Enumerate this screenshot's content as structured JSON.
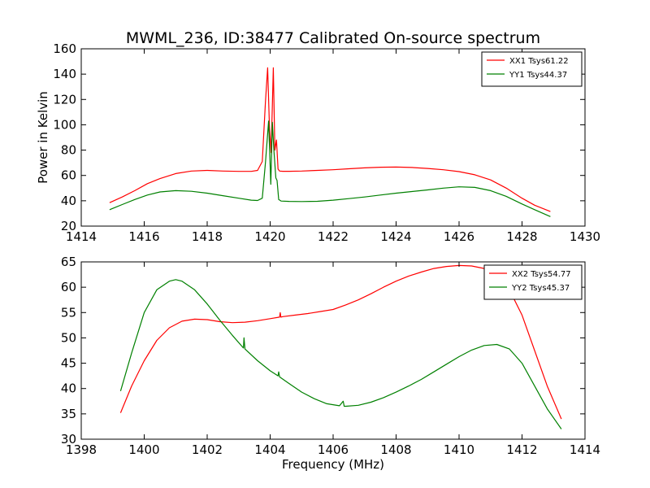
{
  "chart_data": [
    {
      "type": "line",
      "title": "MWML_236, ID:38477 Calibrated On-source spectrum",
      "xlabel": "",
      "ylabel": "Power in Kelvin",
      "xlim": [
        1414,
        1430
      ],
      "ylim": [
        20,
        160
      ],
      "xticks": [
        "1414",
        "1416",
        "1418",
        "1420",
        "1422",
        "1424",
        "1426",
        "1428",
        "1430"
      ],
      "yticks": [
        "20",
        "40",
        "60",
        "80",
        "100",
        "120",
        "140",
        "160"
      ],
      "legend_position": "top-right",
      "grid": false,
      "series": [
        {
          "name": "XX1 Tsys61.22",
          "color": "#ff0000",
          "x": [
            1414.9,
            1415.3,
            1415.7,
            1416.1,
            1416.5,
            1417.0,
            1417.5,
            1418.0,
            1418.5,
            1419.0,
            1419.4,
            1419.6,
            1419.75,
            1419.85,
            1419.92,
            1419.98,
            1420.03,
            1420.1,
            1420.15,
            1420.2,
            1420.25,
            1420.3,
            1420.4,
            1420.6,
            1421.0,
            1421.5,
            1422.0,
            1422.5,
            1423.0,
            1423.5,
            1424.0,
            1424.5,
            1425.0,
            1425.5,
            1426.0,
            1426.5,
            1427.0,
            1427.5,
            1428.0,
            1428.4,
            1428.9
          ],
          "y": [
            38.5,
            43,
            48,
            53.5,
            57.5,
            61.5,
            63.5,
            64,
            63.5,
            63.2,
            63.2,
            64,
            71,
            118,
            145,
            97,
            78,
            145,
            80,
            88,
            65,
            63.5,
            63.3,
            63.3,
            63.5,
            64,
            64.5,
            65.3,
            66,
            66.5,
            66.6,
            66.3,
            65.5,
            64.5,
            63,
            60.5,
            56.5,
            50,
            42,
            36.5,
            31.5
          ]
        },
        {
          "name": "YY1 Tsys44.37",
          "color": "#008000",
          "x": [
            1414.9,
            1415.3,
            1415.7,
            1416.1,
            1416.5,
            1417.0,
            1417.5,
            1418.0,
            1418.5,
            1419.0,
            1419.4,
            1419.6,
            1419.75,
            1419.85,
            1419.95,
            1420.02,
            1420.07,
            1420.12,
            1420.18,
            1420.22,
            1420.27,
            1420.35,
            1420.6,
            1421.0,
            1421.5,
            1422.0,
            1422.5,
            1423.0,
            1423.5,
            1424.0,
            1424.5,
            1425.0,
            1425.5,
            1426.0,
            1426.5,
            1427.0,
            1427.5,
            1428.0,
            1428.4,
            1428.9
          ],
          "y": [
            33,
            37,
            41,
            44.5,
            47,
            48,
            47.5,
            46,
            44,
            42,
            40.5,
            40.2,
            42,
            70,
            103,
            53,
            102,
            80,
            58,
            56,
            41,
            39.8,
            39.5,
            39.4,
            39.6,
            40.5,
            41.7,
            43,
            44.5,
            46,
            47.3,
            48.6,
            50,
            51,
            50.6,
            48,
            43.5,
            37.5,
            33,
            27.5
          ]
        }
      ]
    },
    {
      "type": "line",
      "title": "",
      "xlabel": "Frequency (MHz)",
      "ylabel": "",
      "xlim": [
        1398,
        1414
      ],
      "ylim": [
        30,
        65
      ],
      "xticks": [
        "1398",
        "1400",
        "1402",
        "1404",
        "1406",
        "1408",
        "1410",
        "1412",
        "1414"
      ],
      "yticks": [
        "30",
        "35",
        "40",
        "45",
        "50",
        "55",
        "60",
        "65"
      ],
      "legend_position": "top-right",
      "grid": false,
      "series": [
        {
          "name": "XX2 Tsys54.77",
          "color": "#ff0000",
          "x": [
            1399.25,
            1399.6,
            1400.0,
            1400.4,
            1400.8,
            1401.2,
            1401.6,
            1402.0,
            1402.4,
            1402.8,
            1403.2,
            1403.6,
            1404.0,
            1404.3,
            1404.32,
            1404.34,
            1404.4,
            1404.8,
            1405.2,
            1405.6,
            1406.0,
            1406.4,
            1406.8,
            1407.2,
            1407.6,
            1408.0,
            1408.4,
            1408.8,
            1409.2,
            1409.6,
            1410.0,
            1410.4,
            1410.8,
            1411.2,
            1411.6,
            1412.0,
            1412.4,
            1412.8,
            1413.25
          ],
          "y": [
            35.2,
            40.5,
            45.5,
            49.5,
            52,
            53.3,
            53.7,
            53.6,
            53.2,
            53,
            53.1,
            53.4,
            53.8,
            54.1,
            55,
            54.1,
            54.2,
            54.5,
            54.8,
            55.2,
            55.6,
            56.5,
            57.5,
            58.7,
            60,
            61.2,
            62.2,
            63,
            63.7,
            64.1,
            64.3,
            64.2,
            63.7,
            62.5,
            59.5,
            54.5,
            47.5,
            40.5,
            34
          ]
        },
        {
          "name": "YY2 Tsys45.37",
          "color": "#008000",
          "x": [
            1399.25,
            1399.6,
            1400.0,
            1400.4,
            1400.8,
            1401.0,
            1401.2,
            1401.6,
            1402.0,
            1402.4,
            1402.8,
            1403.15,
            1403.17,
            1403.2,
            1403.6,
            1404.0,
            1404.25,
            1404.27,
            1404.3,
            1404.6,
            1405.0,
            1405.4,
            1405.8,
            1406.2,
            1406.32,
            1406.35,
            1406.4,
            1406.8,
            1407.2,
            1407.6,
            1408.0,
            1408.4,
            1408.8,
            1409.2,
            1409.6,
            1410.0,
            1410.4,
            1410.8,
            1411.2,
            1411.6,
            1412.0,
            1412.4,
            1412.8,
            1413.25
          ],
          "y": [
            39.5,
            47,
            55,
            59.5,
            61.2,
            61.5,
            61.2,
            59.5,
            56.7,
            53.5,
            50.5,
            48,
            50,
            47.8,
            45.5,
            43.5,
            42.5,
            43.3,
            42.3,
            41,
            39.3,
            38,
            37,
            36.6,
            37.5,
            36.5,
            36.5,
            36.7,
            37.3,
            38.2,
            39.3,
            40.5,
            41.8,
            43.3,
            44.8,
            46.3,
            47.6,
            48.5,
            48.7,
            47.8,
            45,
            40.5,
            36,
            32
          ]
        }
      ]
    }
  ]
}
